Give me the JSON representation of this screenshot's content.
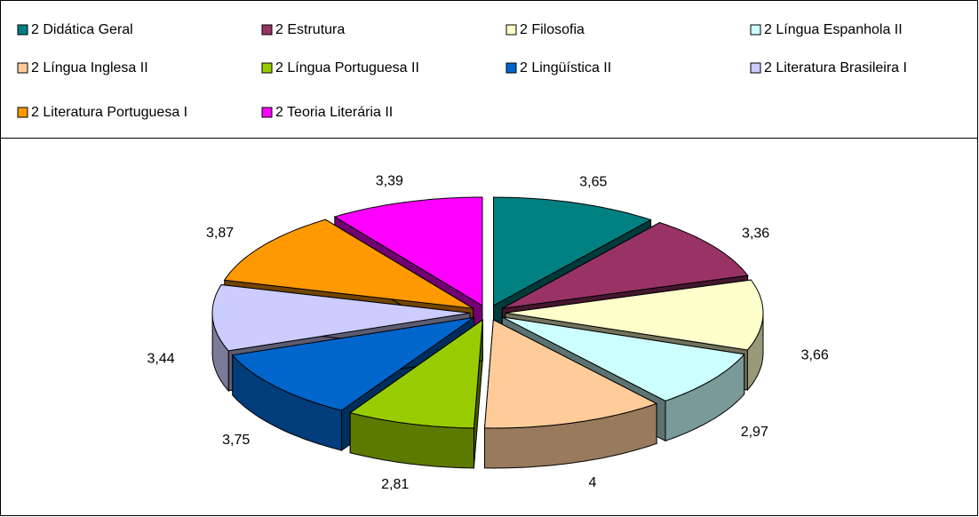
{
  "chart_data": {
    "type": "pie3d",
    "legend": "top",
    "series": [
      {
        "name": "2 Didática Geral",
        "color": "#008080"
      },
      {
        "name": "2 Estrutura",
        "color": "#993366"
      },
      {
        "name": "2 Filosofia",
        "color": "#FFFFCC"
      },
      {
        "name": "2 Língua Espanhola II",
        "color": "#CCFFFF"
      },
      {
        "name": "2 Língua Inglesa II",
        "color": "#FFCC99"
      },
      {
        "name": "2 Língua Portuguesa II",
        "color": "#99CC00"
      },
      {
        "name": "2 Lingüística II",
        "color": "#0066CC"
      },
      {
        "name": "2 Literatura Brasileira I",
        "color": "#CCCCFF"
      },
      {
        "name": "2 Literatura Portuguesa I",
        "color": "#FF9900"
      },
      {
        "name": "2 Teoria Literária II",
        "color": "#FF00FF"
      }
    ],
    "values": [
      3.65,
      3.36,
      3.66,
      2.97,
      4,
      2.81,
      3.75,
      3.44,
      3.87,
      3.39
    ],
    "value_labels": [
      "3,65",
      "3,36",
      "3,66",
      "2,97",
      "4",
      "2,81",
      "3,75",
      "3,44",
      "3,87",
      "3,39"
    ]
  }
}
